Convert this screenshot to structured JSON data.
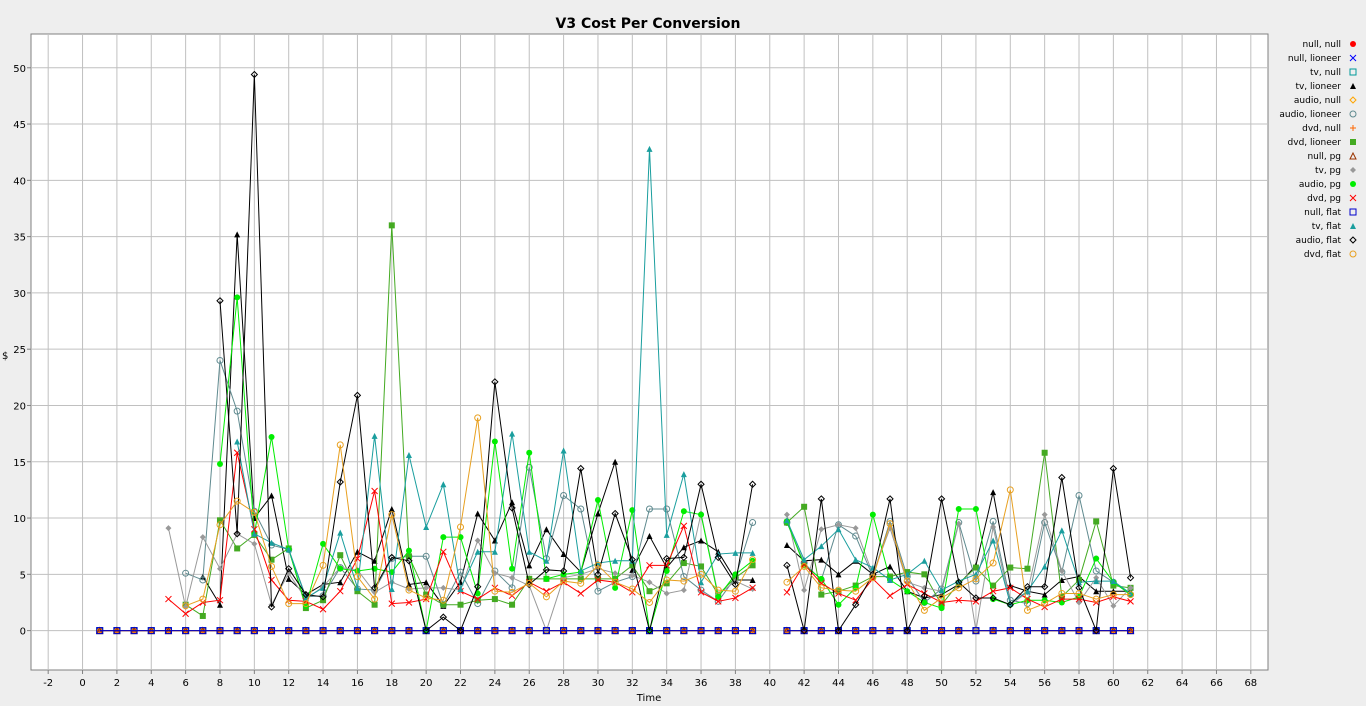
{
  "chart_data": {
    "type": "line",
    "title": "V3 Cost Per Conversion",
    "xlabel": "Time",
    "ylabel": "$",
    "xlim": [
      -3,
      69
    ],
    "ylim": [
      -3.5,
      53
    ],
    "xticks": [
      -2,
      0,
      2,
      4,
      6,
      8,
      10,
      12,
      14,
      16,
      18,
      20,
      22,
      24,
      26,
      28,
      30,
      32,
      34,
      36,
      38,
      40,
      42,
      44,
      46,
      48,
      50,
      52,
      54,
      56,
      58,
      60,
      62,
      64,
      66,
      68
    ],
    "yticks": [
      0,
      5,
      10,
      15,
      20,
      25,
      30,
      35,
      40,
      45,
      50
    ],
    "grid": true,
    "legend_position": "right",
    "x": [
      1,
      2,
      3,
      4,
      5,
      6,
      7,
      8,
      9,
      10,
      11,
      12,
      13,
      14,
      15,
      16,
      17,
      18,
      19,
      20,
      21,
      22,
      23,
      24,
      25,
      26,
      27,
      28,
      29,
      30,
      31,
      32,
      33,
      34,
      35,
      36,
      37,
      38,
      39,
      40,
      41,
      42,
      43,
      44,
      45,
      46,
      47,
      48,
      49,
      50,
      51,
      52,
      53,
      54,
      55,
      56,
      57,
      58,
      59,
      60,
      61
    ],
    "series": [
      {
        "name": "null, null",
        "color": "#ff0000",
        "marker": "dot",
        "values": [
          0,
          0,
          0,
          0,
          0,
          0,
          0,
          0,
          0,
          0,
          0,
          0,
          0,
          0,
          0,
          0,
          0,
          0,
          0,
          0,
          0,
          0,
          0,
          0,
          0,
          0,
          0,
          0,
          0,
          0,
          0,
          0,
          0,
          0,
          0,
          0,
          0,
          0,
          0,
          null,
          0,
          0,
          0,
          0,
          0,
          0,
          0,
          0,
          0,
          0,
          0,
          0,
          0,
          0,
          0,
          0,
          0,
          0,
          0,
          0,
          0
        ]
      },
      {
        "name": "null, lioneer",
        "color": "#0000ff",
        "marker": "x",
        "values": [
          0,
          0,
          0,
          0,
          0,
          0,
          0,
          0,
          0,
          0,
          0,
          0,
          0,
          0,
          0,
          0,
          0,
          0,
          0,
          0,
          0,
          0,
          0,
          0,
          0,
          0,
          0,
          0,
          0,
          0,
          0,
          0,
          0,
          0,
          0,
          0,
          0,
          0,
          0,
          null,
          0,
          0,
          0,
          0,
          0,
          0,
          0,
          0,
          0,
          0,
          0,
          0,
          0,
          0,
          0,
          0,
          0,
          0,
          0,
          0,
          0
        ]
      },
      {
        "name": "tv, null",
        "color": "#009999",
        "marker": "square-open",
        "values": [
          0,
          0,
          0,
          0,
          0,
          0,
          0,
          0,
          0,
          0,
          0,
          0,
          0,
          0,
          0,
          0,
          0,
          0,
          0,
          0,
          0,
          0,
          0,
          0,
          0,
          0,
          0,
          0,
          0,
          0,
          0,
          0,
          0,
          0,
          0,
          0,
          0,
          0,
          0,
          null,
          0,
          0,
          0,
          0,
          0,
          0,
          0,
          0,
          0,
          0,
          0,
          0,
          0,
          0,
          0,
          0,
          0,
          0,
          0,
          0,
          0
        ]
      },
      {
        "name": "tv, lioneer",
        "color": "#000000",
        "marker": "triangle",
        "values": [
          null,
          null,
          null,
          null,
          null,
          null,
          4.8,
          2.3,
          35.2,
          10,
          12,
          4.6,
          3.2,
          4.1,
          4.3,
          7,
          6.2,
          10.8,
          4.1,
          4.3,
          2.2,
          4.3,
          10.4,
          8,
          11.4,
          5.8,
          9,
          6.8,
          5.2,
          10.4,
          15,
          5.4,
          8.4,
          5.6,
          7.4,
          8,
          7,
          4.5,
          4.5,
          null,
          7.6,
          6.2,
          6.3,
          5,
          6.2,
          5,
          5.7,
          3.5,
          2.9,
          3.2,
          4.1,
          5.8,
          12.3,
          4,
          3.5,
          3.2,
          4.5,
          4.8,
          3.5,
          3.5,
          3.5
        ]
      },
      {
        "name": "audio, null",
        "color": "#ffa500",
        "marker": "diamond-open",
        "values": [
          0,
          0,
          0,
          0,
          0,
          0,
          0,
          0,
          0,
          0,
          0,
          0,
          0,
          0,
          0,
          0,
          0,
          0,
          0,
          0,
          0,
          0,
          0,
          0,
          0,
          0,
          0,
          0,
          0,
          0,
          0,
          0,
          0,
          0,
          0,
          0,
          0,
          0,
          0,
          null,
          0,
          0,
          0,
          0,
          0,
          0,
          0,
          0,
          0,
          0,
          0,
          0,
          0,
          0,
          0,
          0,
          0,
          0,
          0,
          0,
          0
        ]
      },
      {
        "name": "audio, lioneer",
        "color": "#5f8a8f",
        "marker": "circle-open",
        "values": [
          null,
          null,
          null,
          null,
          null,
          5.1,
          4.5,
          24,
          19.5,
          10.6,
          7.6,
          7.2,
          3,
          3.1,
          5.6,
          3.7,
          3.6,
          6.4,
          6.6,
          6.6,
          2.3,
          5.2,
          2.4,
          5.3,
          3.8,
          14.5,
          6.4,
          12,
          10.8,
          3.5,
          4.3,
          4.8,
          10.8,
          10.8,
          4.8,
          3.6,
          2.6,
          4.7,
          9.6,
          null,
          9.6,
          6,
          4.5,
          9.4,
          8.4,
          4.8,
          9.7,
          4.8,
          2.5,
          3.7,
          9.6,
          4.4,
          9.7,
          2.7,
          2.4,
          9.6,
          5.2,
          12,
          5.3,
          4.3,
          3.2
        ]
      },
      {
        "name": "dvd, null",
        "color": "#ff6600",
        "marker": "plus",
        "values": [
          0,
          0,
          0,
          0,
          0,
          0,
          0,
          0,
          0,
          0,
          0,
          0,
          0,
          0,
          0,
          0,
          0,
          0,
          0,
          0,
          0,
          0,
          0,
          0,
          0,
          0,
          0,
          0,
          0,
          0,
          0,
          0,
          0,
          0,
          0,
          0,
          0,
          0,
          0,
          null,
          0,
          0,
          0,
          0,
          0,
          0,
          0,
          0,
          0,
          0,
          0,
          0,
          0,
          0,
          0,
          0,
          0,
          0,
          0,
          0,
          0
        ]
      },
      {
        "name": "dvd, lioneer",
        "color": "#44aa22",
        "marker": "square",
        "values": [
          null,
          null,
          null,
          null,
          null,
          2.3,
          1.3,
          9.8,
          7.3,
          8.5,
          6.3,
          7.3,
          2,
          2.7,
          6.7,
          3.5,
          2.3,
          36,
          6.6,
          3.2,
          2.3,
          2.3,
          2.7,
          2.8,
          2.3,
          4.6,
          4.6,
          4.6,
          4.6,
          4.6,
          4.6,
          5.8,
          3.5,
          4.2,
          6,
          5.7,
          3.2,
          4.7,
          5.8,
          null,
          9.6,
          11,
          3.2,
          3.5,
          4,
          4.8,
          4.8,
          5.2,
          5,
          2.3,
          4.2,
          5.6,
          4,
          5.6,
          5.5,
          15.8,
          3,
          4.5,
          9.7,
          4,
          3.8
        ]
      },
      {
        "name": "null, pg",
        "color": "#993300",
        "marker": "triangle-open",
        "values": [
          0,
          0,
          0,
          0,
          0,
          0,
          0,
          0,
          0,
          0,
          0,
          0,
          0,
          0,
          0,
          0,
          0,
          0,
          0,
          0,
          0,
          0,
          0,
          0,
          0,
          0,
          0,
          0,
          0,
          0,
          0,
          0,
          0,
          0,
          0,
          0,
          0,
          0,
          0,
          null,
          0,
          0,
          0,
          0,
          0,
          0,
          0,
          0,
          0,
          0,
          0,
          0,
          0,
          0,
          0,
          0,
          0,
          0,
          0,
          0,
          0
        ]
      },
      {
        "name": "tv, pg",
        "color": "#999999",
        "marker": "diamond",
        "values": [
          null,
          null,
          null,
          null,
          9.1,
          2.1,
          8.3,
          5.5,
          8.6,
          7.7,
          2.3,
          5.1,
          2.8,
          3.9,
          5.6,
          5.4,
          3.4,
          4.3,
          3.7,
          3.8,
          3.8,
          3.6,
          8,
          5.1,
          4.7,
          4,
          0,
          4.7,
          5,
          5.5,
          5.1,
          4.9,
          4.3,
          3.3,
          3.6,
          10.4,
          3.2,
          4.4,
          3.7,
          null,
          10.3,
          3.6,
          9,
          9.4,
          9.1,
          5,
          9.1,
          4.3,
          3.8,
          3.5,
          9.5,
          0,
          9.2,
          2.3,
          3.4,
          10.3,
          5.3,
          2.5,
          4.7,
          2.2,
          3.8
        ]
      },
      {
        "name": "audio, pg",
        "color": "#00ee00",
        "marker": "dot",
        "values": [
          null,
          null,
          null,
          null,
          null,
          null,
          null,
          14.8,
          29.6,
          8.6,
          17.2,
          7.2,
          2.2,
          7.7,
          5.5,
          5.3,
          5.5,
          5.2,
          7.1,
          0,
          8.3,
          8.3,
          3.3,
          16.8,
          5.5,
          15.8,
          4.6,
          5,
          5.2,
          11.6,
          3.8,
          10.7,
          0,
          5.3,
          10.6,
          10.3,
          3,
          5,
          6.2,
          null,
          9.7,
          5.8,
          4.6,
          2.3,
          3.8,
          10.3,
          4.5,
          3.5,
          2.5,
          2,
          10.8,
          10.8,
          2.8,
          2.3,
          2.7,
          2.7,
          2.5,
          3,
          6.4,
          4.3,
          3.2
        ]
      },
      {
        "name": "dvd, pg",
        "color": "#ff0000",
        "marker": "x",
        "values": [
          null,
          null,
          null,
          null,
          2.8,
          1.5,
          2.5,
          2.7,
          15.8,
          9,
          4.5,
          2.7,
          2.6,
          1.9,
          3.5,
          6.4,
          12.4,
          2.4,
          2.5,
          2.8,
          7,
          3.5,
          2.8,
          3.8,
          3.1,
          4.3,
          3.5,
          4.3,
          3.3,
          4.5,
          4.3,
          3.4,
          5.8,
          5.8,
          9.3,
          3.4,
          2.6,
          2.9,
          3.8,
          null,
          3.4,
          5.9,
          4.2,
          3.3,
          2.7,
          4.6,
          3.1,
          4.1,
          3.3,
          2.5,
          2.7,
          2.6,
          3.5,
          3.8,
          2.8,
          2.1,
          2.8,
          2.8,
          2.5,
          3,
          2.6
        ]
      },
      {
        "name": "null, flat",
        "color": "#0000cc",
        "marker": "square-open",
        "values": [
          0,
          0,
          0,
          0,
          0,
          0,
          0,
          0,
          0,
          0,
          0,
          0,
          0,
          0,
          0,
          0,
          0,
          0,
          0,
          0,
          0,
          0,
          0,
          0,
          0,
          0,
          0,
          0,
          0,
          0,
          0,
          0,
          0,
          0,
          0,
          0,
          0,
          0,
          0,
          null,
          0,
          0,
          0,
          0,
          0,
          0,
          0,
          0,
          0,
          0,
          0,
          0,
          0,
          0,
          0,
          0,
          0,
          0,
          0,
          0,
          0
        ]
      },
      {
        "name": "tv, flat",
        "color": "#1a9e9e",
        "marker": "triangle",
        "values": [
          null,
          null,
          null,
          null,
          null,
          null,
          null,
          null,
          16.8,
          8.6,
          7.8,
          7.2,
          2.9,
          3.8,
          8.7,
          3.8,
          17.3,
          3.7,
          15.6,
          9.2,
          13,
          3.7,
          7,
          7,
          17.5,
          7,
          6.2,
          16,
          5.3,
          6,
          6.2,
          6.2,
          42.8,
          8.5,
          13.9,
          4.3,
          6.8,
          6.9,
          6.9,
          null,
          9.8,
          6.3,
          7.5,
          9,
          6.3,
          5.6,
          4.5,
          5,
          6.2,
          3.6,
          4.4,
          5,
          8,
          2.4,
          3.5,
          5.7,
          8.9,
          4.3,
          4.4,
          4.4,
          3.3
        ]
      },
      {
        "name": "audio, flat",
        "color": "#000000",
        "marker": "diamond-open",
        "values": [
          null,
          null,
          null,
          null,
          null,
          null,
          null,
          29.3,
          8.6,
          49.4,
          2.1,
          5.5,
          3.2,
          3,
          13.2,
          20.9,
          3.8,
          6.5,
          6.2,
          0,
          1.2,
          0,
          3.9,
          22.1,
          10.9,
          4.1,
          5.4,
          5.3,
          14.4,
          5,
          10.4,
          6.3,
          0,
          6.4,
          6.5,
          13,
          6.5,
          4.1,
          13,
          null,
          5.8,
          0,
          11.7,
          0,
          2.3,
          5,
          11.7,
          0,
          3.1,
          11.7,
          4.3,
          2.9,
          2.9,
          2.3,
          3.9,
          3.9,
          13.6,
          3.8,
          0,
          14.4,
          4.7
        ]
      },
      {
        "name": "dvd, flat",
        "color": "#e8a020",
        "marker": "circle-open",
        "values": [
          null,
          null,
          null,
          null,
          null,
          2.2,
          2.8,
          9.4,
          11.5,
          10.5,
          5.7,
          2.4,
          2.4,
          5.8,
          16.5,
          4.8,
          2.8,
          10.3,
          3.6,
          2.9,
          2.7,
          9.2,
          18.9,
          3.5,
          3.4,
          4.2,
          3,
          4.4,
          4.2,
          5.8,
          4.3,
          3.7,
          2.5,
          4.5,
          4.4,
          5,
          3.6,
          3.5,
          6.3,
          null,
          4.3,
          5.7,
          3.8,
          3.6,
          3.5,
          4.7,
          9.5,
          4.4,
          1.8,
          2.9,
          3.8,
          4.6,
          6,
          12.5,
          1.8,
          2.4,
          3.3,
          3.3,
          2.8,
          3.2,
          3.2
        ]
      }
    ]
  }
}
